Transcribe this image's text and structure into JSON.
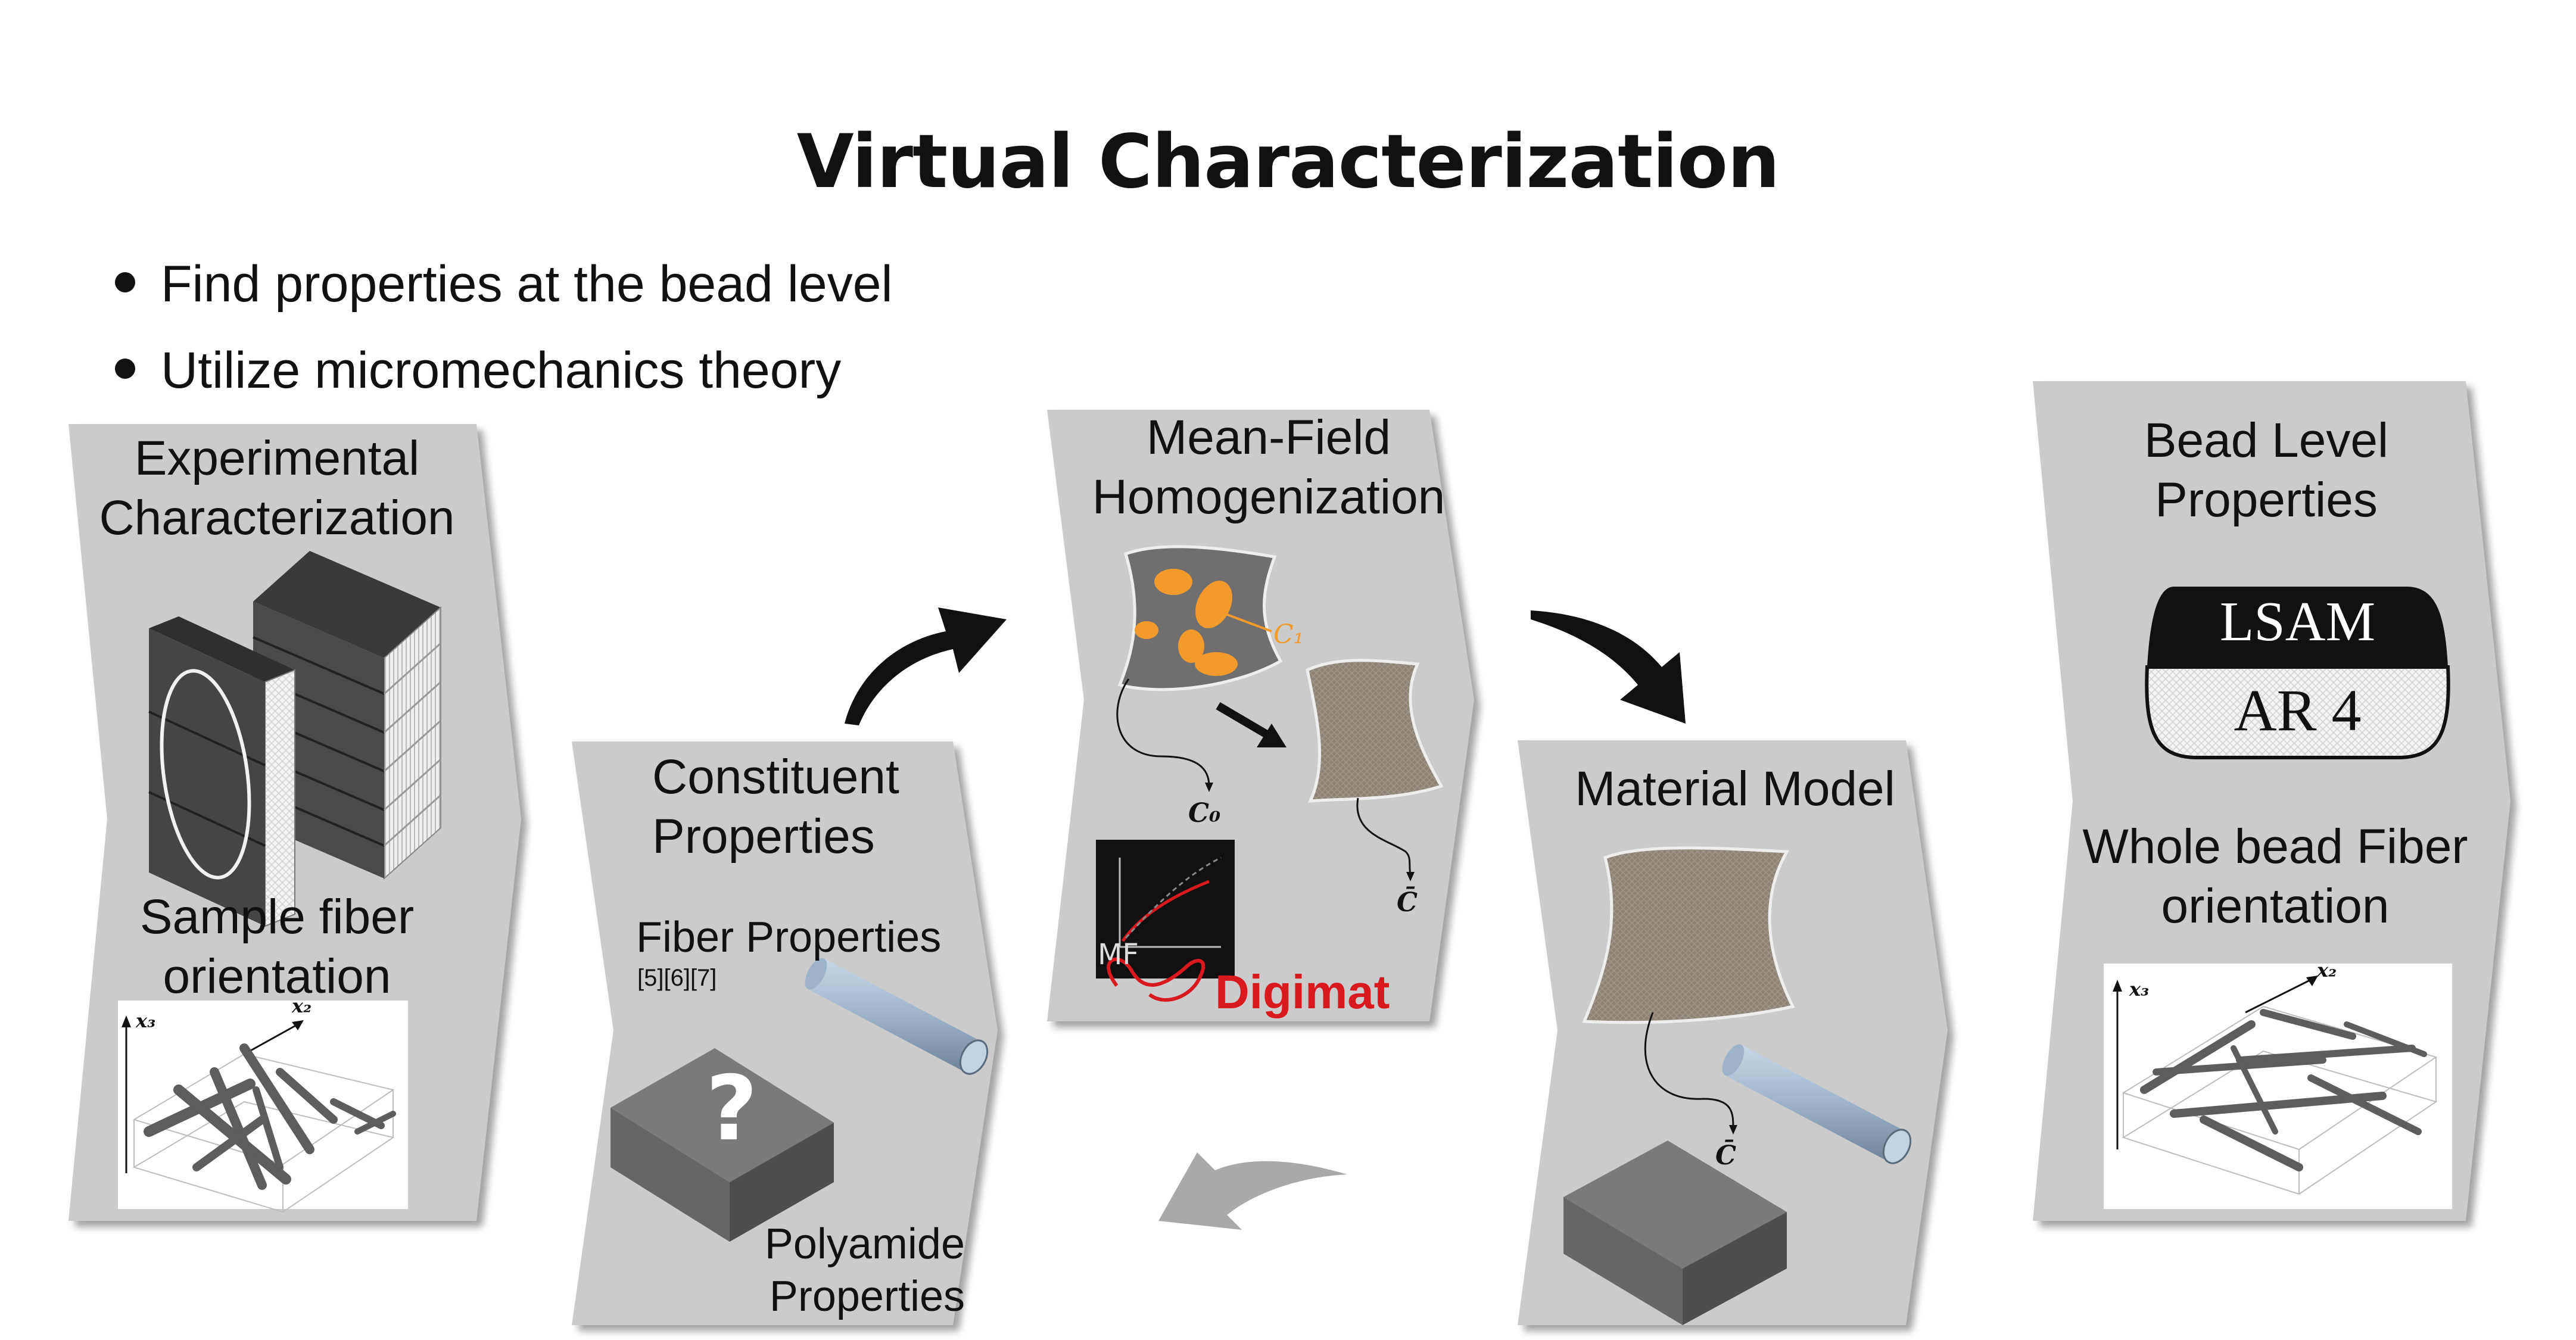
{
  "title": "Virtual Characterization",
  "bullets": [
    "Find properties at the bead level",
    "Utilize micromechanics theory"
  ],
  "panels": {
    "experimental": {
      "heading_line1": "Experimental",
      "heading_line2": "Characterization",
      "sub_line1": "Sample fiber",
      "sub_line2": "orientation",
      "axis_x3": "x₃",
      "axis_x2": "x₂"
    },
    "constituent": {
      "heading_line1": "Constituent",
      "heading_line2": "Properties",
      "fiber_label": "Fiber Properties",
      "refs": "[5][6][7]",
      "question": "?",
      "polyamide_line1": "Polyamide",
      "polyamide_line2": "Properties"
    },
    "mean_field": {
      "heading_line1": "Mean-Field",
      "heading_line2": "Homogenization",
      "c1": "C₁",
      "c0": "C₀",
      "cbar": "C̄",
      "mf_text": "MF",
      "digimat": "Digimat"
    },
    "material_model": {
      "heading": "Material Model",
      "cbar": "C̄"
    },
    "bead_level": {
      "heading_line1": "Bead Level",
      "heading_line2": "Properties",
      "lsam": "LSAM",
      "ar": "AR 4",
      "sub_line1": "Whole bead Fiber",
      "sub_line2": "orientation",
      "axis_x3": "x₃",
      "axis_x2": "x₂"
    }
  },
  "colors": {
    "panel": "#cbcbcb",
    "panel_shadow": "#8f8f8f",
    "accent_orange": "#f39a2d",
    "digimat_red": "#d8191f",
    "arrow_black": "#111111",
    "arrow_gray": "#a9a9a9",
    "fiber_blue": "#a9bfd6"
  }
}
